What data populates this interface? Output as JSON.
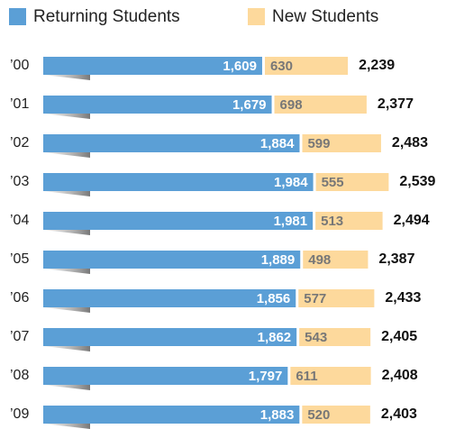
{
  "chart_data": {
    "type": "stacked-bar-horizontal",
    "categories": [
      "’00",
      "’01",
      "’02",
      "’03",
      "’04",
      "’05",
      "’06",
      "’07",
      "’08",
      "’09"
    ],
    "series": [
      {
        "name": "Returning Students",
        "color": "#5b9fd6",
        "values": [
          1609,
          1679,
          1884,
          1984,
          1981,
          1889,
          1856,
          1862,
          1797,
          1883
        ],
        "value_labels": [
          "1,609",
          "1,679",
          "1,884",
          "1,984",
          "1,981",
          "1,889",
          "1,856",
          "1,862",
          "1,797",
          "1,883"
        ]
      },
      {
        "name": "New Students",
        "color": "#fdd99c",
        "values": [
          630,
          698,
          599,
          555,
          513,
          498,
          577,
          543,
          611,
          520
        ]
      }
    ],
    "totals": {
      "values": [
        2239,
        2377,
        2483,
        2539,
        2494,
        2387,
        2433,
        2405,
        2408,
        2403
      ],
      "value_labels": [
        "2,239",
        "2,377",
        "2,483",
        "2,539",
        "2,494",
        "2,387",
        "2,433",
        "2,405",
        "2,408",
        "2,403"
      ]
    }
  }
}
